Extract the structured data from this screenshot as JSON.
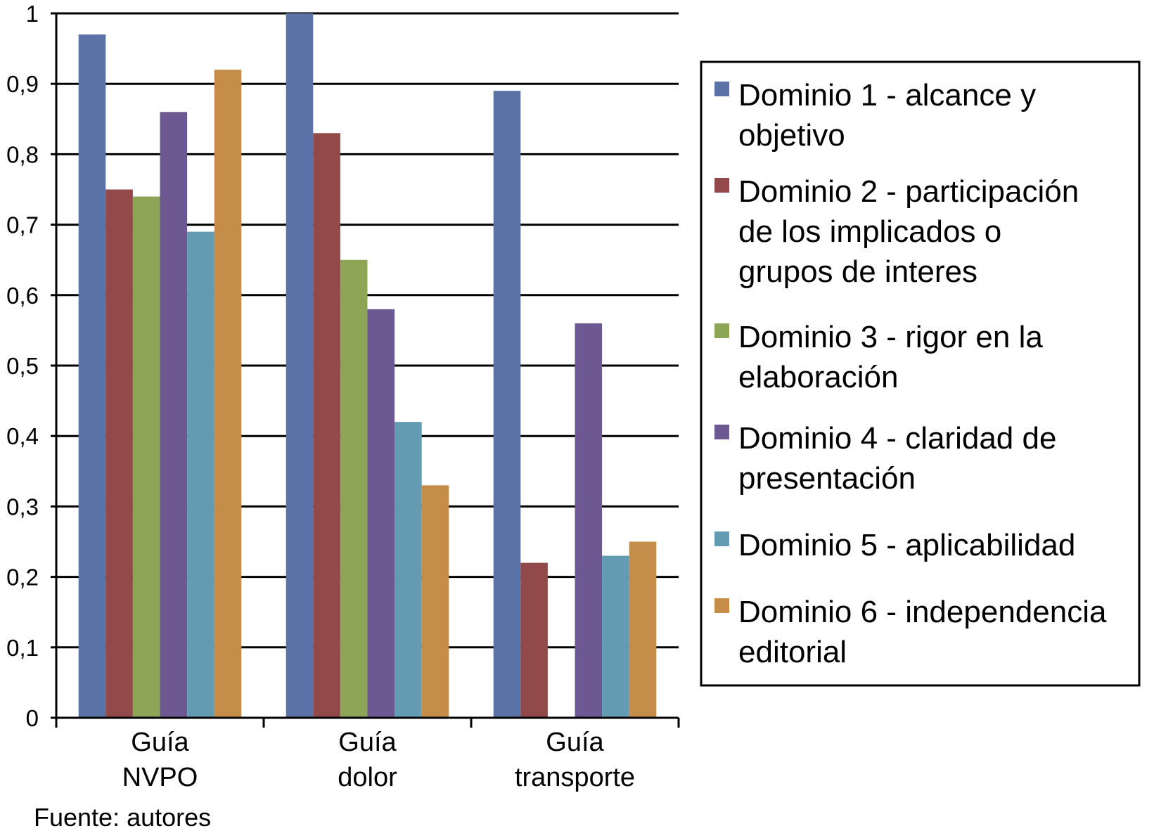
{
  "chart_data": {
    "type": "bar",
    "categories": [
      [
        "Guía",
        "NVPO"
      ],
      [
        "Guía",
        "dolor"
      ],
      [
        "Guía",
        "transporte"
      ]
    ],
    "ylim": [
      0,
      1
    ],
    "yticks": [
      0,
      0.1,
      0.2,
      0.3,
      0.4,
      0.5,
      0.6,
      0.7,
      0.8,
      0.9,
      1
    ],
    "ytick_labels": [
      "0",
      "0,1",
      "0,2",
      "0,3",
      "0,4",
      "0,5",
      "0,6",
      "0,7",
      "0,8",
      "0,9",
      "1"
    ],
    "grid": true,
    "legend_position": "right",
    "series": [
      {
        "name": "Dominio 1 - alcance y objetivo",
        "legend_lines": [
          "Dominio 1 - alcance y",
          "objetivo"
        ],
        "color": "#5a72a6",
        "values": [
          0.97,
          1.0,
          0.89
        ]
      },
      {
        "name": "Dominio 2 - participación de los implicados o grupos de interes",
        "legend_lines": [
          "Dominio 2 - participación",
          "de los implicados o",
          "grupos de interes"
        ],
        "color": "#914a49",
        "values": [
          0.75,
          0.83,
          0.22
        ]
      },
      {
        "name": "Dominio 3 - rigor en la elaboración",
        "legend_lines": [
          "Dominio 3 - rigor en la",
          "elaboración"
        ],
        "color": "#8da556",
        "values": [
          0.74,
          0.65,
          0.0
        ]
      },
      {
        "name": "Dominio 4 - claridad de presentación",
        "legend_lines": [
          "Dominio 4 - claridad de",
          "presentación"
        ],
        "color": "#6d5892",
        "values": [
          0.86,
          0.58,
          0.56
        ]
      },
      {
        "name": "Dominio 5 - aplicabilidad",
        "legend_lines": [
          "Dominio 5 - aplicabilidad"
        ],
        "color": "#639bb2",
        "values": [
          0.69,
          0.42,
          0.23
        ]
      },
      {
        "name": "Dominio 6 - independencia editorial",
        "legend_lines": [
          "Dominio 6 - independencia",
          "editorial"
        ],
        "color": "#c58d4a",
        "values": [
          0.92,
          0.33,
          0.25
        ]
      }
    ]
  },
  "source_note": "Fuente: autores"
}
